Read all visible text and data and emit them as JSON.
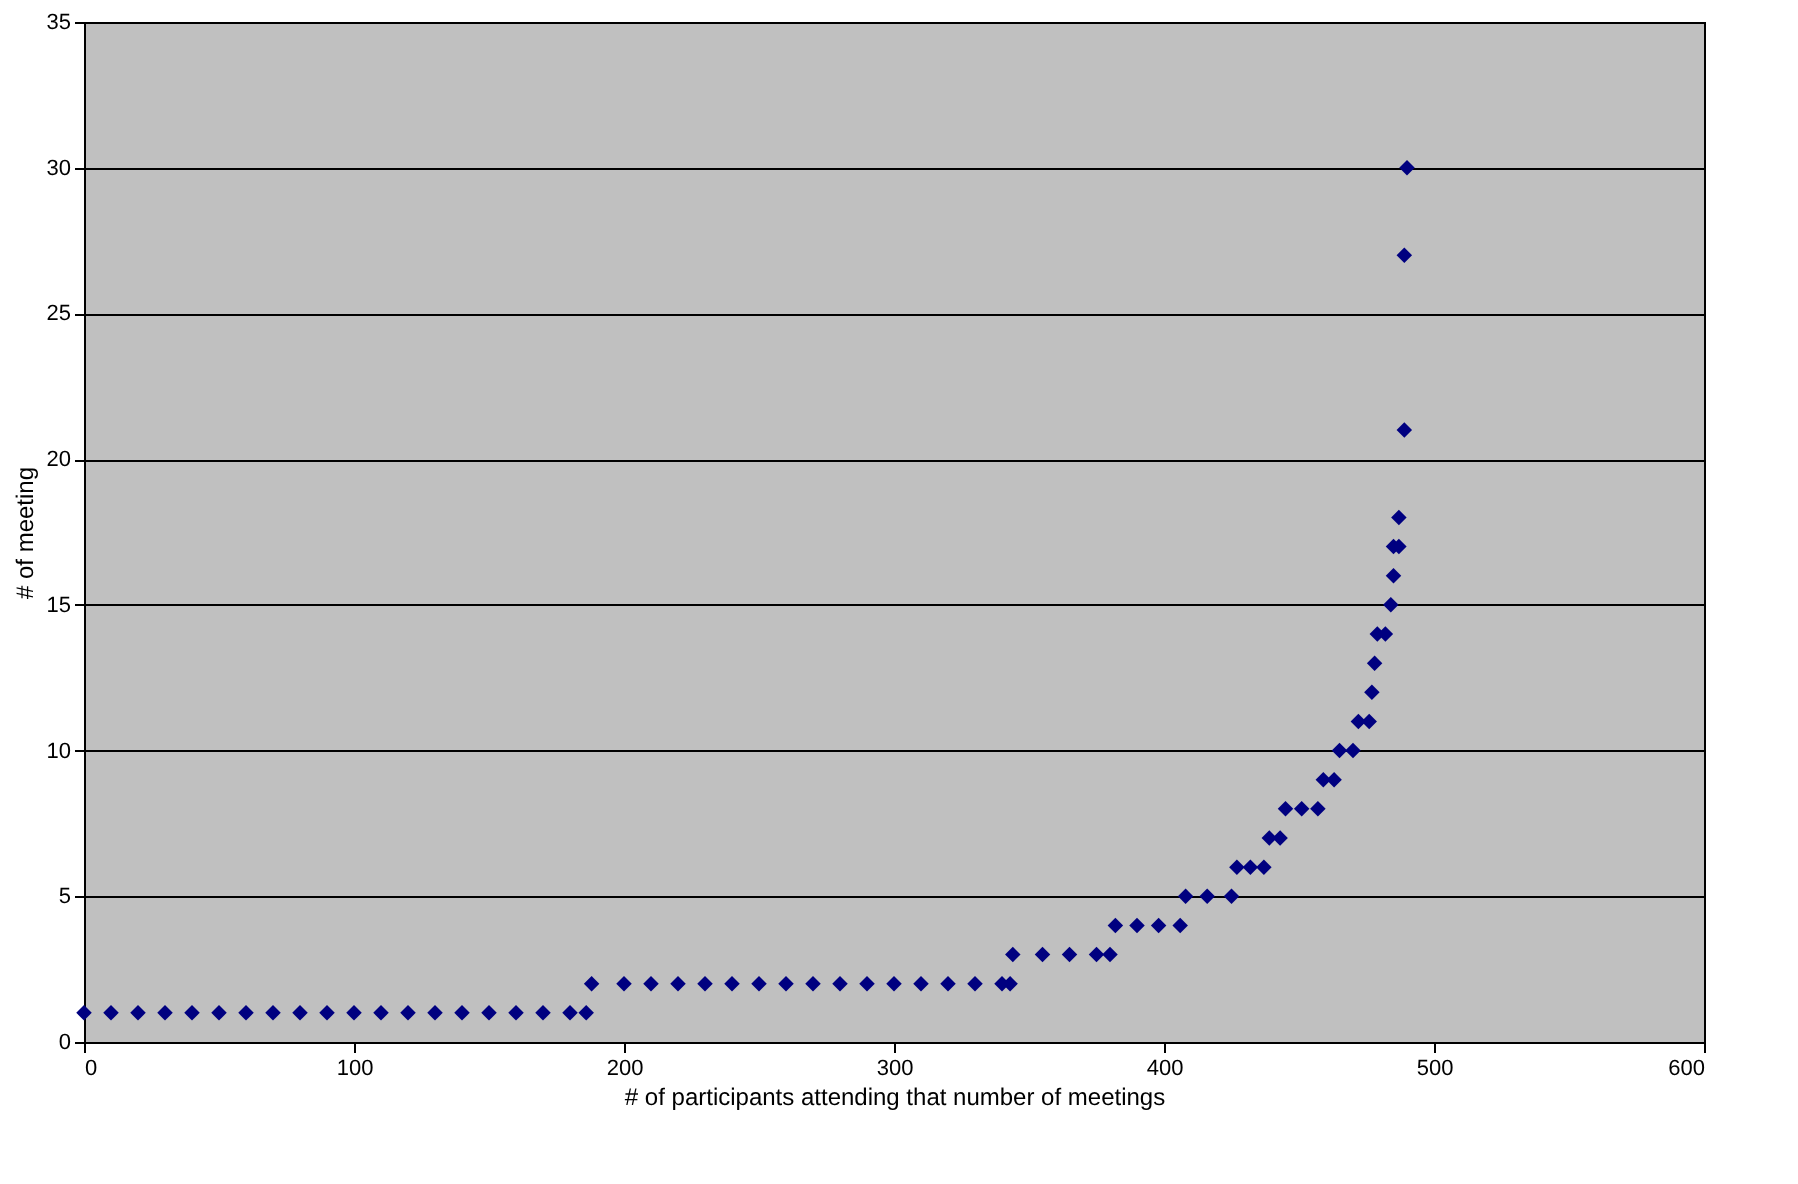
{
  "chart_data": {
    "type": "scatter",
    "xlabel": "# of participants attending that number of meetings",
    "ylabel": "# of meeting",
    "x": [
      0,
      10,
      20,
      30,
      40,
      50,
      60,
      70,
      80,
      90,
      100,
      110,
      120,
      130,
      140,
      150,
      160,
      170,
      180,
      186,
      188,
      200,
      210,
      220,
      230,
      240,
      250,
      260,
      270,
      280,
      290,
      300,
      310,
      320,
      330,
      340,
      343,
      344,
      355,
      365,
      375,
      380,
      382,
      390,
      398,
      406,
      408,
      416,
      425,
      427,
      432,
      437,
      439,
      443,
      445,
      451,
      457,
      459,
      463,
      465,
      470,
      472,
      476,
      477,
      478,
      479,
      482,
      484,
      485,
      485,
      487,
      487,
      489,
      489,
      490
    ],
    "series": [
      {
        "color": "#000080",
        "values": [
          1,
          1,
          1,
          1,
          1,
          1,
          1,
          1,
          1,
          1,
          1,
          1,
          1,
          1,
          1,
          1,
          1,
          1,
          1,
          1,
          2,
          2,
          2,
          2,
          2,
          2,
          2,
          2,
          2,
          2,
          2,
          2,
          2,
          2,
          2,
          2,
          2,
          3,
          3,
          3,
          3,
          3,
          4,
          4,
          4,
          4,
          5,
          5,
          5,
          6,
          6,
          6,
          7,
          7,
          8,
          8,
          8,
          9,
          9,
          10,
          10,
          11,
          11,
          12,
          13,
          14,
          14,
          15,
          16,
          17,
          17,
          18,
          21,
          27,
          30
        ]
      }
    ],
    "xlim": [
      0,
      600
    ],
    "xticks": [
      0,
      100,
      200,
      300,
      400,
      500,
      600
    ],
    "ylim": [
      0,
      35
    ],
    "yticks": [
      0,
      5,
      10,
      15,
      20,
      25,
      30,
      35
    ],
    "grid": "y",
    "marker": "diamond"
  }
}
